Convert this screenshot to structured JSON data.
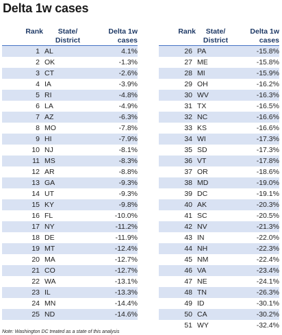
{
  "title": "Delta 1w cases",
  "headers": {
    "rank": "Rank",
    "state_top": "State/",
    "state_bottom": "District",
    "delta_top": "Delta 1w",
    "delta_bottom": "cases"
  },
  "left_rows": [
    {
      "rank": "1",
      "state": "AL",
      "delta": "4.1%"
    },
    {
      "rank": "2",
      "state": "OK",
      "delta": "-1.3%"
    },
    {
      "rank": "3",
      "state": "CT",
      "delta": "-2.6%"
    },
    {
      "rank": "4",
      "state": "IA",
      "delta": "-3.9%"
    },
    {
      "rank": "5",
      "state": "RI",
      "delta": "-4.8%"
    },
    {
      "rank": "6",
      "state": "LA",
      "delta": "-4.9%"
    },
    {
      "rank": "7",
      "state": "AZ",
      "delta": "-6.3%"
    },
    {
      "rank": "8",
      "state": "MO",
      "delta": "-7.8%"
    },
    {
      "rank": "9",
      "state": "HI",
      "delta": "-7.9%"
    },
    {
      "rank": "10",
      "state": "NJ",
      "delta": "-8.1%"
    },
    {
      "rank": "11",
      "state": "MS",
      "delta": "-8.3%"
    },
    {
      "rank": "12",
      "state": "AR",
      "delta": "-8.8%"
    },
    {
      "rank": "13",
      "state": "GA",
      "delta": "-9.3%"
    },
    {
      "rank": "14",
      "state": "UT",
      "delta": "-9.3%"
    },
    {
      "rank": "15",
      "state": "KY",
      "delta": "-9.8%"
    },
    {
      "rank": "16",
      "state": "FL",
      "delta": "-10.0%"
    },
    {
      "rank": "17",
      "state": "NY",
      "delta": "-11.2%"
    },
    {
      "rank": "18",
      "state": "DE",
      "delta": "-11.9%"
    },
    {
      "rank": "19",
      "state": "MT",
      "delta": "-12.4%"
    },
    {
      "rank": "20",
      "state": "MA",
      "delta": "-12.7%"
    },
    {
      "rank": "21",
      "state": "CO",
      "delta": "-12.7%"
    },
    {
      "rank": "22",
      "state": "WA",
      "delta": "-13.1%"
    },
    {
      "rank": "23",
      "state": "IL",
      "delta": "-13.3%"
    },
    {
      "rank": "24",
      "state": "MN",
      "delta": "-14.4%"
    },
    {
      "rank": "25",
      "state": "ND",
      "delta": "-14.6%"
    }
  ],
  "right_rows": [
    {
      "rank": "26",
      "state": "PA",
      "delta": "-15.8%"
    },
    {
      "rank": "27",
      "state": "ME",
      "delta": "-15.8%"
    },
    {
      "rank": "28",
      "state": "MI",
      "delta": "-15.9%"
    },
    {
      "rank": "29",
      "state": "OH",
      "delta": "-16.2%"
    },
    {
      "rank": "30",
      "state": "WV",
      "delta": "-16.3%"
    },
    {
      "rank": "31",
      "state": "TX",
      "delta": "-16.5%"
    },
    {
      "rank": "32",
      "state": "NC",
      "delta": "-16.6%"
    },
    {
      "rank": "33",
      "state": "KS",
      "delta": "-16.6%"
    },
    {
      "rank": "34",
      "state": "WI",
      "delta": "-17.3%"
    },
    {
      "rank": "35",
      "state": "SD",
      "delta": "-17.3%"
    },
    {
      "rank": "36",
      "state": "VT",
      "delta": "-17.8%"
    },
    {
      "rank": "37",
      "state": "OR",
      "delta": "-18.6%"
    },
    {
      "rank": "38",
      "state": "MD",
      "delta": "-19.0%"
    },
    {
      "rank": "39",
      "state": "DC",
      "delta": "-19.1%"
    },
    {
      "rank": "40",
      "state": "AK",
      "delta": "-20.3%"
    },
    {
      "rank": "41",
      "state": "SC",
      "delta": "-20.5%"
    },
    {
      "rank": "42",
      "state": "NV",
      "delta": "-21.3%"
    },
    {
      "rank": "43",
      "state": "IN",
      "delta": "-22.0%"
    },
    {
      "rank": "44",
      "state": "NH",
      "delta": "-22.3%"
    },
    {
      "rank": "45",
      "state": "NM",
      "delta": "-22.4%"
    },
    {
      "rank": "46",
      "state": "VA",
      "delta": "-23.4%"
    },
    {
      "rank": "47",
      "state": "NE",
      "delta": "-24.1%"
    },
    {
      "rank": "48",
      "state": "TN",
      "delta": "-26.3%"
    },
    {
      "rank": "49",
      "state": "ID",
      "delta": "-30.1%"
    },
    {
      "rank": "50",
      "state": "CA",
      "delta": "-30.2%"
    },
    {
      "rank": "51",
      "state": "WY",
      "delta": "-32.4%"
    }
  ],
  "note": "Note: Washington DC treated as a state of this analysis",
  "colors": {
    "band": "#d9e2f3",
    "header_text": "#1f3a66",
    "header_rule": "#4472c4"
  }
}
